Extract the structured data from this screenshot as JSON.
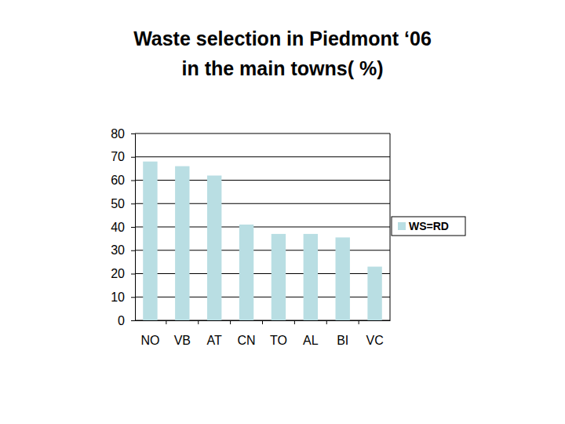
{
  "chart_data": {
    "type": "bar",
    "title": [
      "Waste  selection  in  Piedmont ‘06",
      "in  the  main  towns( %)"
    ],
    "categories": [
      "NO",
      "VB",
      "AT",
      "CN",
      "TO",
      "AL",
      "BI",
      "VC"
    ],
    "series": [
      {
        "name": "WS=RD",
        "color": "#b9dee3",
        "values": [
          68,
          66,
          62,
          41,
          37,
          37,
          35.5,
          23
        ]
      }
    ],
    "ylim": [
      0,
      80
    ],
    "yticks": [
      0,
      10,
      20,
      30,
      40,
      50,
      60,
      70,
      80
    ],
    "grid": true,
    "legend": "right"
  }
}
